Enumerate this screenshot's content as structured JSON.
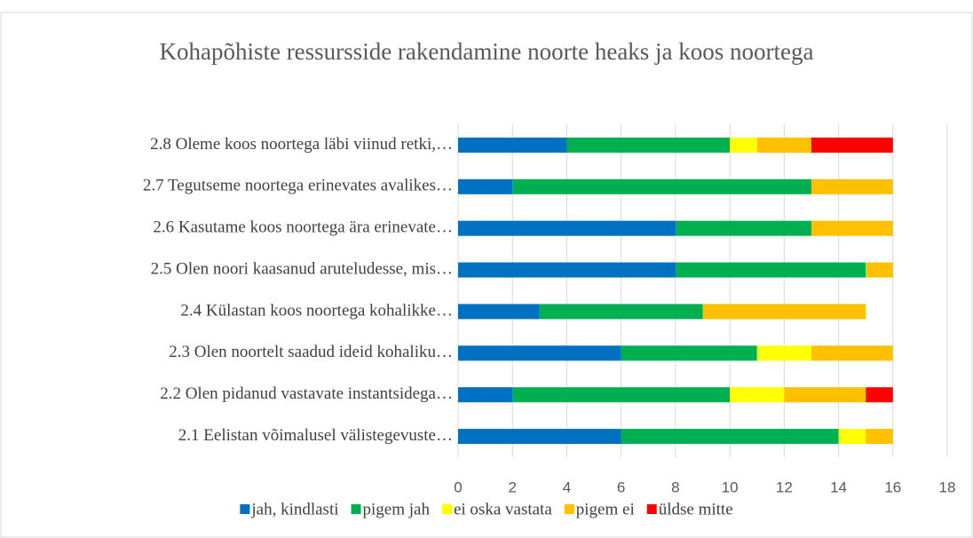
{
  "chart_data": {
    "type": "bar",
    "orientation": "horizontal",
    "stacked": true,
    "title": "Kohapõhiste ressursside rakendamine noorte heaks ja koos noortega",
    "categories": [
      "2.1 Eelistan võimalusel välistegevuste…",
      "2.2 Olen pidanud vastavate instantsidega…",
      "2.3 Olen noortelt saadud ideid kohaliku…",
      "2.4 Külastan koos noortega kohalikke…",
      "2.5 Olen noori kaasanud aruteludesse, mis…",
      "2.6 Kasutame koos noortega ära erinevate…",
      "2.7 Tegutseme noortega erinevates avalikes…",
      "2.8 Oleme koos noortega läbi viinud retki,…"
    ],
    "series": [
      {
        "name": "jah, kindlasti",
        "color": "#0070c0",
        "values": [
          6,
          2,
          6,
          3,
          8,
          8,
          2,
          4
        ]
      },
      {
        "name": "pigem jah",
        "color": "#00b050",
        "values": [
          8,
          8,
          5,
          6,
          7,
          5,
          11,
          6
        ]
      },
      {
        "name": "ei oska vastata",
        "color": "#ffff00",
        "values": [
          1,
          2,
          2,
          0,
          0,
          0,
          0,
          1
        ]
      },
      {
        "name": "pigem ei",
        "color": "#ffc000",
        "values": [
          1,
          3,
          3,
          6,
          1,
          3,
          3,
          2
        ]
      },
      {
        "name": "üldse mitte",
        "color": "#ff0000",
        "values": [
          0,
          1,
          0,
          0,
          0,
          0,
          0,
          3
        ]
      }
    ],
    "xlim": [
      0,
      18
    ],
    "xticks": [
      0,
      2,
      4,
      6,
      8,
      10,
      12,
      14,
      16,
      18
    ],
    "grid": true,
    "legend": "bottom"
  }
}
